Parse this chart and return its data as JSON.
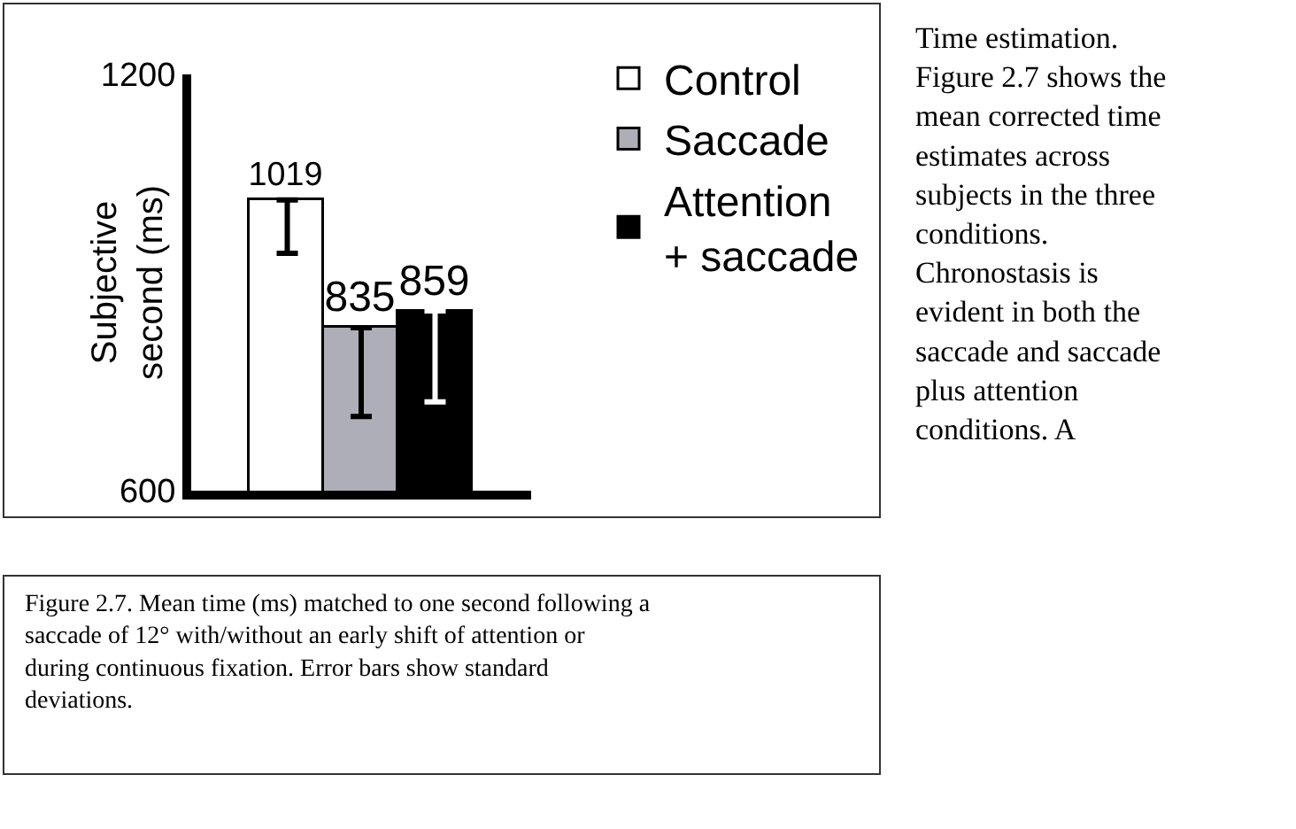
{
  "chart_data": {
    "type": "bar",
    "ylabel": "Subjective second (ms)",
    "categories": [
      null,
      null,
      null
    ],
    "series": [
      {
        "name": "Control",
        "color": "#ffffff",
        "values": [
          1019,
          null,
          null
        ],
        "errors": [
          [
            942,
            1019
          ],
          null,
          null
        ]
      },
      {
        "name": "Saccade",
        "color": "#aeaeb8",
        "values": [
          null,
          835,
          null
        ],
        "errors": [
          null,
          [
            707,
            835
          ],
          null
        ]
      },
      {
        "name": "Attention + saccade",
        "color": "#000000",
        "values": [
          null,
          null,
          859
        ],
        "errors": [
          null,
          null,
          [
            728,
            859
          ]
        ]
      }
    ],
    "ylim": [
      600,
      1200
    ],
    "yticks": [
      600,
      1200
    ],
    "data_labels": true,
    "legend": "right",
    "annotations": [
      "Figure 2.7. Mean time (ms) matched to one second following a saccade of 12° with/without an early shift of attention or during continuous fixation. Error bars show standard deviations.",
      "Time estimation. Figure 2.7 shows the mean corrected time estimates across subjects in the three conditions. Chronostasis is evident in both the saccade and saccade plus attention conditions. A"
    ]
  }
}
